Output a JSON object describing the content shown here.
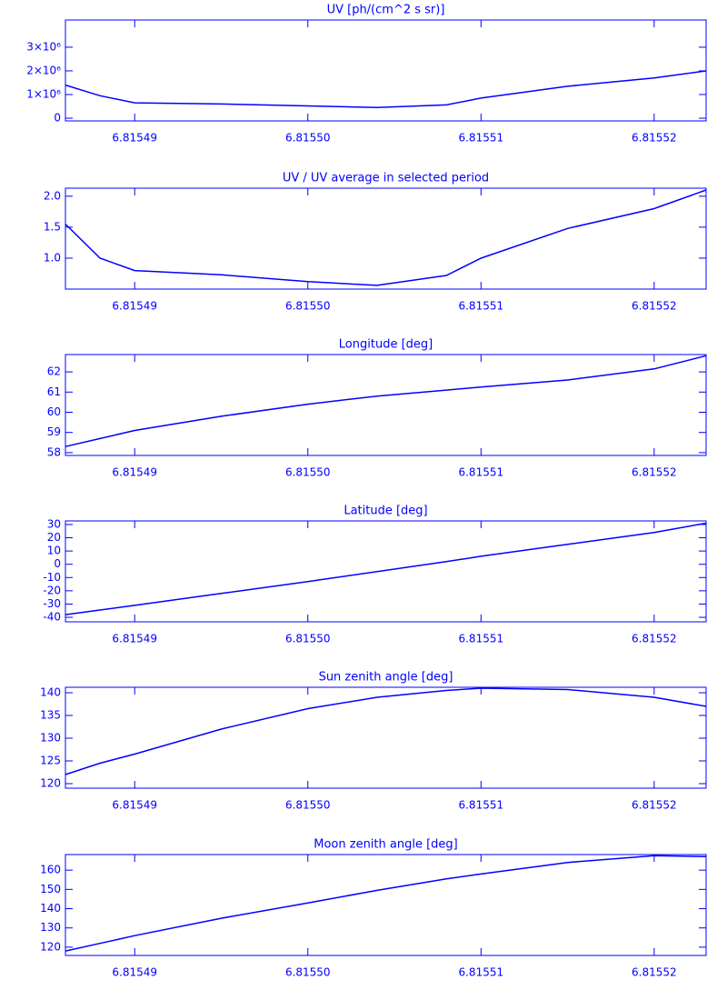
{
  "chart_data": [
    {
      "type": "line",
      "title": "UV [ph/(cm^2 s sr)]",
      "x": [
        6.815486,
        6.815488,
        6.81549,
        6.815495,
        6.8155,
        6.815504,
        6.815508,
        6.81551,
        6.815515,
        6.81552,
        6.815523
      ],
      "values": [
        1400000,
        950000,
        650000,
        600000,
        520000,
        450000,
        560000,
        850000,
        1350000,
        1700000,
        2000000
      ],
      "color": "#0000ff",
      "xlim": [
        6.815486,
        6.815523
      ],
      "xticks": [
        6.81549,
        {
          "value": 6.8155,
          "label": "6.81550"
        },
        6.81551,
        6.81552
      ],
      "ylim": [
        -115000,
        4150000
      ],
      "yticks": [
        0,
        {
          "value": 1000000,
          "label": "1×10⁶"
        },
        {
          "value": 2000000,
          "label": "2×10⁶"
        },
        {
          "value": 3000000,
          "label": "3×10⁶"
        }
      ]
    },
    {
      "type": "line",
      "title": "UV / UV average in selected period",
      "x": [
        6.815486,
        6.815488,
        6.81549,
        6.815495,
        6.8155,
        6.815504,
        6.815508,
        6.81551,
        6.815515,
        6.81552,
        6.815523
      ],
      "values": [
        1.55,
        1.0,
        0.8,
        0.73,
        0.62,
        0.56,
        0.72,
        1.0,
        1.48,
        1.8,
        2.1
      ],
      "color": "#0000ff",
      "xlim": [
        6.815486,
        6.815523
      ],
      "xticks": [
        6.81549,
        {
          "value": 6.8155,
          "label": "6.81550"
        },
        6.81551,
        6.81552
      ],
      "ylim": [
        0.5,
        2.13
      ],
      "yticks": [
        {
          "value": 1,
          "label": "1.0"
        },
        1.5,
        {
          "value": 2,
          "label": "2.0"
        }
      ]
    },
    {
      "type": "line",
      "title": "Longitude [deg]",
      "x": [
        6.815486,
        6.815488,
        6.81549,
        6.815495,
        6.8155,
        6.815504,
        6.815508,
        6.81551,
        6.815515,
        6.81552,
        6.815523
      ],
      "values": [
        58.3,
        58.7,
        59.1,
        59.8,
        60.4,
        60.8,
        61.1,
        61.25,
        61.6,
        62.15,
        62.8
      ],
      "color": "#0000ff",
      "xlim": [
        6.815486,
        6.815523
      ],
      "xticks": [
        6.81549,
        {
          "value": 6.8155,
          "label": "6.81550"
        },
        6.81551,
        6.81552
      ],
      "ylim": [
        57.86,
        62.86
      ],
      "yticks": [
        58,
        59,
        60,
        61,
        62
      ]
    },
    {
      "type": "line",
      "title": "Latitude [deg]",
      "x": [
        6.815486,
        6.815488,
        6.81549,
        6.815495,
        6.8155,
        6.815504,
        6.815508,
        6.81551,
        6.815515,
        6.81552,
        6.815523
      ],
      "values": [
        -38,
        -34.5,
        -31,
        -22,
        -13,
        -5.5,
        2,
        6,
        15,
        24,
        31
      ],
      "color": "#0000ff",
      "xlim": [
        6.815486,
        6.815523
      ],
      "xticks": [
        6.81549,
        {
          "value": 6.8155,
          "label": "6.81550"
        },
        6.81551,
        6.81552
      ],
      "ylim": [
        -43.4,
        32.7
      ],
      "yticks": [
        -40,
        -30,
        -20,
        -10,
        0,
        10,
        20,
        30
      ]
    },
    {
      "type": "line",
      "title": "Sun zenith angle [deg]",
      "x": [
        6.815486,
        6.815488,
        6.81549,
        6.815495,
        6.8155,
        6.815504,
        6.815508,
        6.81551,
        6.815515,
        6.81552,
        6.815523
      ],
      "values": [
        122,
        124.5,
        126.5,
        132,
        136.5,
        139,
        140.5,
        141,
        140.7,
        139,
        137
      ],
      "color": "#0000ff",
      "xlim": [
        6.815486,
        6.815523
      ],
      "xticks": [
        6.81549,
        {
          "value": 6.8155,
          "label": "6.81550"
        },
        6.81551,
        6.81552
      ],
      "ylim": [
        119,
        141.2
      ],
      "yticks": [
        120,
        125,
        130,
        135,
        140
      ]
    },
    {
      "type": "line",
      "title": "Moon zenith angle [deg]",
      "x": [
        6.815486,
        6.815488,
        6.81549,
        6.815495,
        6.8155,
        6.815504,
        6.815508,
        6.81551,
        6.815515,
        6.81552,
        6.815523
      ],
      "values": [
        118,
        122,
        126,
        135,
        143,
        149.5,
        155.5,
        158,
        164,
        167.5,
        167
      ],
      "color": "#0000ff",
      "xlim": [
        6.815486,
        6.815523
      ],
      "xticks": [
        6.81549,
        {
          "value": 6.8155,
          "label": "6.81550"
        },
        6.81551,
        6.81552
      ],
      "ylim": [
        115.7,
        168.1
      ],
      "yticks": [
        120,
        130,
        140,
        150,
        160
      ]
    }
  ]
}
